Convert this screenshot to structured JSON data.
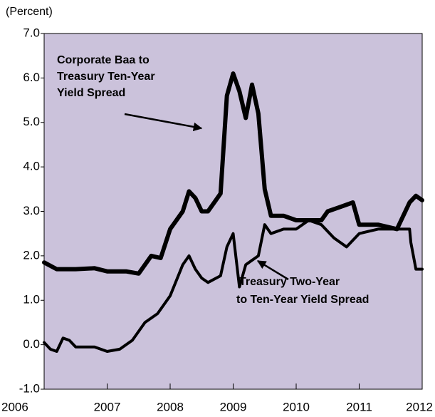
{
  "chart_data": {
    "type": "line",
    "y_label": "(Percent)",
    "xlim": [
      2006,
      2012
    ],
    "xticks": [
      2006,
      2007,
      2008,
      2009,
      2010,
      2011,
      2012
    ],
    "ylim": [
      -1,
      7
    ],
    "yticks": [
      {
        "value": -1,
        "label": "-1.0"
      },
      {
        "value": 0,
        "label": "0.0"
      },
      {
        "value": 1,
        "label": "1.0"
      },
      {
        "value": 2,
        "label": "2.0"
      },
      {
        "value": 3,
        "label": "3.0"
      },
      {
        "value": 4,
        "label": "4.0"
      },
      {
        "value": 5,
        "label": "5.0"
      },
      {
        "value": 6,
        "label": "6.0"
      },
      {
        "value": 7,
        "label": "7.0"
      }
    ],
    "background": "#cbc2db",
    "series": [
      {
        "name": "Corporate Baa to Treasury Ten-Year Yield Spread",
        "color": "#000000",
        "x": [
          2006.0,
          2006.2,
          2006.5,
          2006.8,
          2007.0,
          2007.3,
          2007.5,
          2007.7,
          2007.85,
          2008.0,
          2008.2,
          2008.3,
          2008.4,
          2008.5,
          2008.6,
          2008.7,
          2008.8,
          2008.9,
          2009.0,
          2009.1,
          2009.2,
          2009.3,
          2009.4,
          2009.5,
          2009.6,
          2009.8,
          2010.0,
          2010.2,
          2010.4,
          2010.5,
          2010.7,
          2010.9,
          2011.0,
          2011.3,
          2011.6,
          2011.8,
          2011.9,
          2012.0
        ],
        "values": [
          1.85,
          1.7,
          1.7,
          1.72,
          1.65,
          1.65,
          1.6,
          2.0,
          1.95,
          2.6,
          3.0,
          3.45,
          3.3,
          3.0,
          3.0,
          3.2,
          3.4,
          5.6,
          6.1,
          5.7,
          5.1,
          5.85,
          5.2,
          3.5,
          2.9,
          2.9,
          2.8,
          2.8,
          2.8,
          3.0,
          3.1,
          3.2,
          2.7,
          2.7,
          2.6,
          3.2,
          3.35,
          3.25
        ]
      },
      {
        "name": "Treasury Two-Year to Ten-Year Yield Spread",
        "color": "#000000",
        "x": [
          2006.0,
          2006.1,
          2006.2,
          2006.3,
          2006.4,
          2006.5,
          2006.8,
          2007.0,
          2007.2,
          2007.4,
          2007.6,
          2007.8,
          2008.0,
          2008.2,
          2008.3,
          2008.4,
          2008.5,
          2008.6,
          2008.8,
          2008.9,
          2009.0,
          2009.1,
          2009.2,
          2009.3,
          2009.4,
          2009.5,
          2009.6,
          2009.8,
          2010.0,
          2010.2,
          2010.4,
          2010.6,
          2010.8,
          2011.0,
          2011.3,
          2011.6,
          2011.8,
          2011.82,
          2011.9,
          2012.0
        ],
        "values": [
          0.05,
          -0.1,
          -0.15,
          0.15,
          0.1,
          -0.05,
          -0.05,
          -0.15,
          -0.1,
          0.1,
          0.5,
          0.7,
          1.1,
          1.8,
          2.0,
          1.7,
          1.5,
          1.4,
          1.55,
          2.2,
          2.5,
          1.3,
          1.8,
          1.9,
          2.0,
          2.7,
          2.5,
          2.6,
          2.6,
          2.8,
          2.7,
          2.4,
          2.2,
          2.5,
          2.6,
          2.6,
          2.6,
          2.3,
          1.7,
          1.7
        ]
      }
    ],
    "annotations": [
      {
        "lines": [
          "Corporate Baa to",
          "Treasury Ten-Year",
          "Yield Spread"
        ]
      },
      {
        "lines": [
          "Treasury Two-Year",
          "to Ten-Year Yield Spread"
        ]
      }
    ]
  }
}
